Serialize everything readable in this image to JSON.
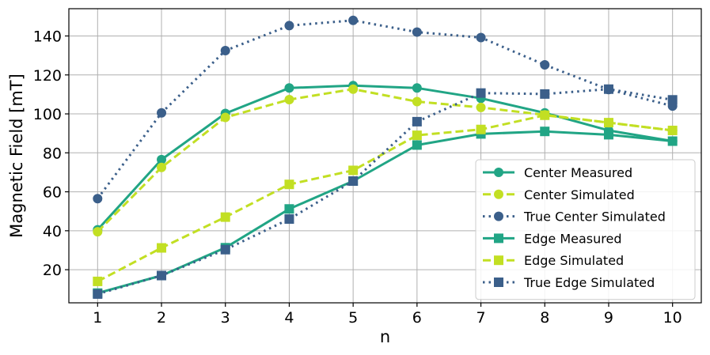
{
  "chart_data": {
    "type": "line",
    "title": "",
    "xlabel": "n",
    "ylabel": "Magnetic Field [mT]",
    "x": [
      1,
      2,
      3,
      4,
      5,
      6,
      7,
      8,
      9,
      10
    ],
    "xlim": [
      0.55,
      10.45
    ],
    "ylim": [
      3,
      154
    ],
    "xticks": [
      1,
      2,
      3,
      4,
      5,
      6,
      7,
      8,
      9,
      10
    ],
    "yticks": [
      20,
      40,
      60,
      80,
      100,
      120,
      140
    ],
    "grid": true,
    "legend_position": "lower-right",
    "series": [
      {
        "name": "Center Measured",
        "values": [
          40.5,
          76.5,
          100.2,
          113.3,
          114.5,
          113.3,
          108.0,
          100.5,
          91.5,
          86.0
        ],
        "color": "#21a585",
        "line": "solid",
        "marker": "circle"
      },
      {
        "name": "Center Simulated",
        "values": [
          39.5,
          72.5,
          98.2,
          107.3,
          112.7,
          106.3,
          103.3,
          99.5,
          95.5,
          91.5
        ],
        "color": "#c2df23",
        "line": "dashed",
        "marker": "circle"
      },
      {
        "name": "True Center Simulated",
        "values": [
          56.5,
          100.5,
          132.5,
          145.3,
          148.0,
          142.0,
          139.2,
          125.2,
          112.5,
          104.0
        ],
        "color": "#3b5f8a",
        "line": "dotted",
        "marker": "circle"
      },
      {
        "name": "Edge Measured",
        "values": [
          8.0,
          17.0,
          31.3,
          51.2,
          65.5,
          84.0,
          89.7,
          91.0,
          89.3,
          86.0
        ],
        "color": "#21a585",
        "line": "solid",
        "marker": "square"
      },
      {
        "name": "Edge Simulated",
        "values": [
          14.0,
          31.2,
          47.0,
          63.8,
          71.0,
          89.0,
          92.0,
          99.3,
          95.5,
          91.5
        ],
        "color": "#c2df23",
        "line": "dashed",
        "marker": "square"
      },
      {
        "name": "True Edge Simulated",
        "values": [
          7.5,
          17.0,
          30.3,
          46.0,
          65.5,
          96.0,
          110.7,
          110.2,
          112.7,
          107.2
        ],
        "color": "#3b5f8a",
        "line": "dotted",
        "marker": "square"
      }
    ]
  }
}
